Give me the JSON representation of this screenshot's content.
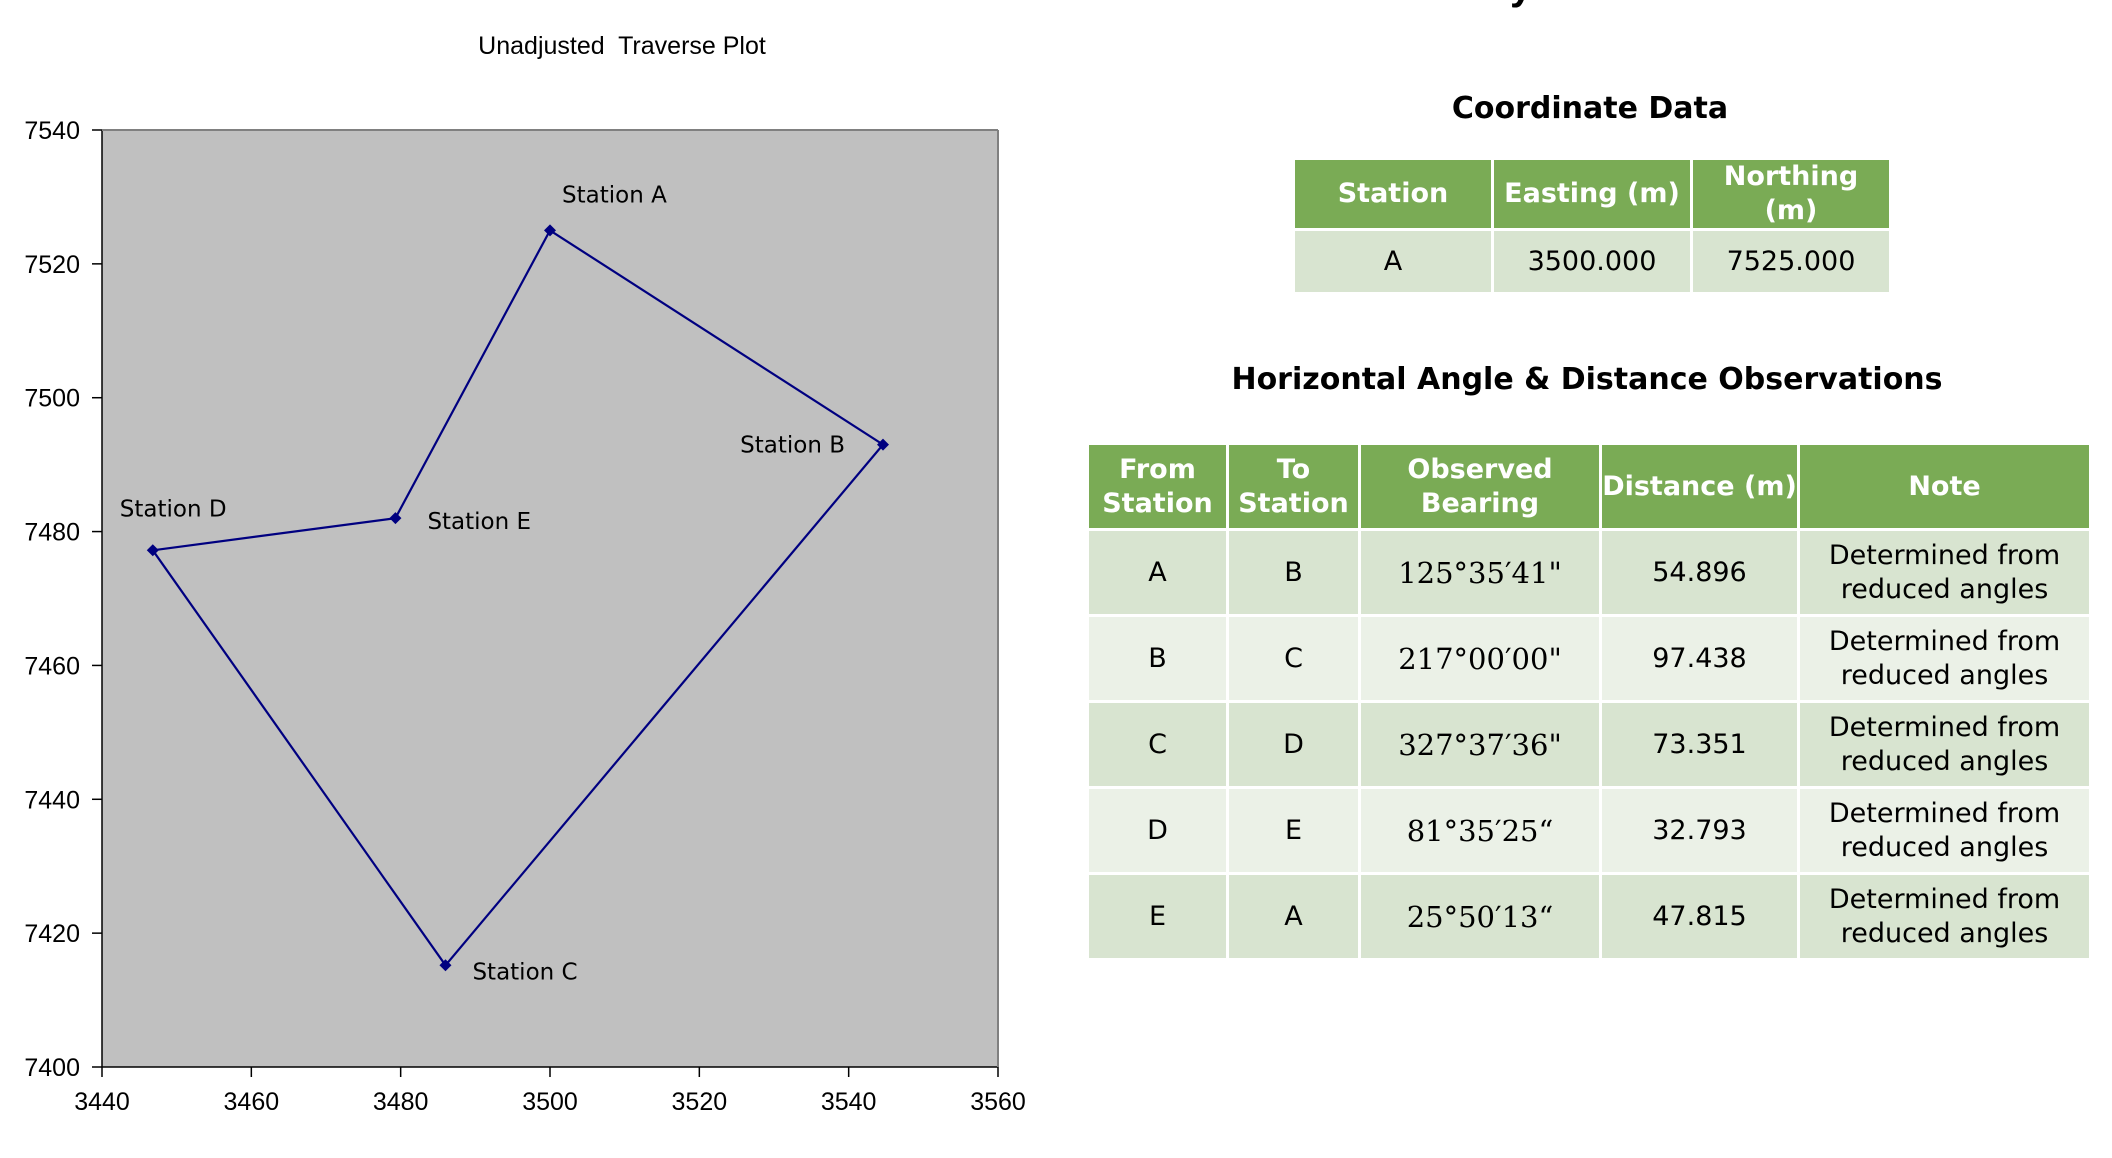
{
  "page_heading_partial": "y",
  "chart_data": {
    "type": "line",
    "title": "Unadjusted  Traverse Plot",
    "xlabel": "",
    "ylabel": "",
    "xlim": [
      3440,
      3560
    ],
    "ylim": [
      7400,
      7540
    ],
    "x_ticks": [
      3440,
      3460,
      3480,
      3500,
      3520,
      3540,
      3560
    ],
    "y_ticks": [
      7400,
      7420,
      7440,
      7460,
      7480,
      7500,
      7520,
      7540
    ],
    "grid": false,
    "plot_background": "#c0c0c0",
    "series": [
      {
        "color": "#000080",
        "points": [
          {
            "x": 3500.0,
            "y": 7525.0,
            "label": "Station A"
          },
          {
            "x": 3544.6,
            "y": 7493.0,
            "label": "Station B"
          },
          {
            "x": 3486.0,
            "y": 7415.2,
            "label": "Station C"
          },
          {
            "x": 3446.8,
            "y": 7477.2,
            "label": "Station D"
          },
          {
            "x": 3479.3,
            "y": 7482.0,
            "label": "Station E"
          },
          {
            "x": 3500.0,
            "y": 7525.0,
            "label": ""
          }
        ]
      }
    ]
  },
  "coordinate_data": {
    "title": "Coordinate Data",
    "headers": [
      "Station",
      "Easting (m)",
      "Northing (m)"
    ],
    "rows": [
      [
        "A",
        "3500.000",
        "7525.000"
      ]
    ]
  },
  "observations": {
    "title": "Horizontal Angle & Distance Observations",
    "headers": [
      [
        "From",
        "Station"
      ],
      [
        "To",
        "Station"
      ],
      [
        "Observed",
        "Bearing"
      ],
      [
        "Distance (m)"
      ],
      [
        "Note"
      ]
    ],
    "rows": [
      {
        "from": "A",
        "to": "B",
        "bearing": "125°35′41\"",
        "distance": "54.896",
        "note": [
          "Determined from",
          "reduced angles"
        ]
      },
      {
        "from": "B",
        "to": "C",
        "bearing": "217°00′00\"",
        "distance": "97.438",
        "note": [
          "Determined from",
          "reduced angles"
        ]
      },
      {
        "from": "C",
        "to": "D",
        "bearing": "327°37′36\"",
        "distance": "73.351",
        "note": [
          "Determined from",
          "reduced angles"
        ]
      },
      {
        "from": "D",
        "to": "E",
        "bearing": "81°35′25“",
        "distance": "32.793",
        "note": [
          "Determined from",
          "reduced angles"
        ]
      },
      {
        "from": "E",
        "to": "A",
        "bearing": "25°50′13“",
        "distance": "47.815",
        "note": [
          "Determined from",
          "reduced angles"
        ]
      }
    ]
  }
}
